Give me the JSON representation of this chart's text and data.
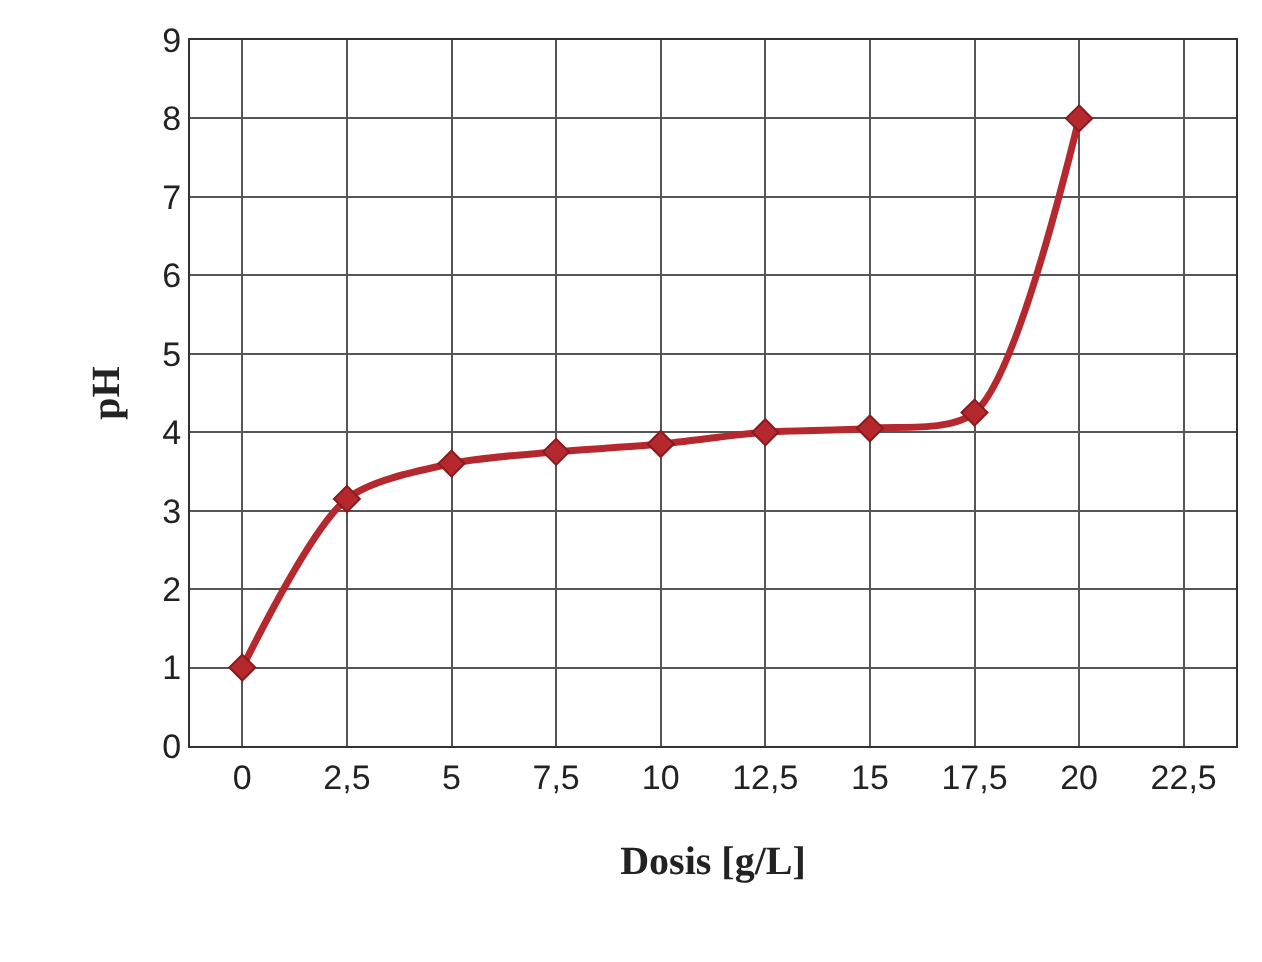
{
  "chart_data": {
    "type": "line",
    "xlabel": "Dosis [g/L]",
    "ylabel": "pH",
    "categories": [
      "0",
      "2,5",
      "5",
      "7,5",
      "10",
      "12,5",
      "15",
      "17,5",
      "20",
      "22,5"
    ],
    "series": [
      {
        "color": "#b5282e",
        "values": [
          1.0,
          3.15,
          3.6,
          3.75,
          3.85,
          4.0,
          4.05,
          4.25,
          8.0,
          null
        ]
      }
    ],
    "ylim": [
      0,
      9
    ],
    "yticks": [
      0,
      1,
      2,
      3,
      4,
      5,
      6,
      7,
      8,
      9
    ],
    "grid": true,
    "marker": "diamond",
    "line_style": "solid"
  }
}
